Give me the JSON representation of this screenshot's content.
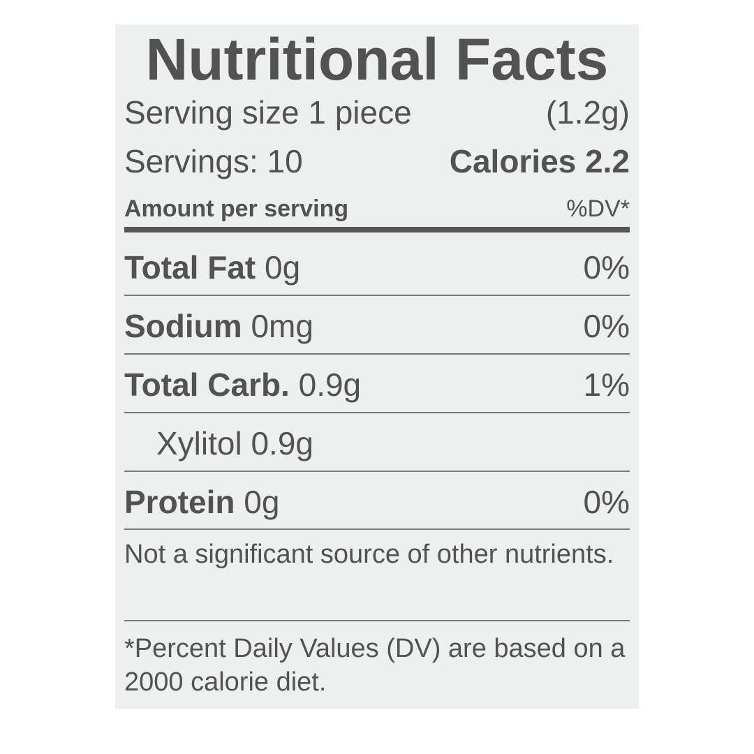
{
  "title": "Nutritional Facts",
  "serving_size_label": "Serving size 1 piece",
  "serving_size_weight": "(1.2g)",
  "servings": "Servings: 10",
  "calories": "Calories 2.2",
  "amount_header": "Amount per serving",
  "dv_header": "%DV*",
  "nutrients": [
    {
      "name": "Total Fat",
      "amount": "0g",
      "dv": "0%"
    },
    {
      "name": "Sodium",
      "amount": "0mg",
      "dv": "0%"
    },
    {
      "name": "Total Carb.",
      "amount": "0.9g",
      "dv": "1%"
    },
    {
      "name": "",
      "amount": "Xylitol 0.9g",
      "dv": ""
    },
    {
      "name": "Protein",
      "amount": "0g",
      "dv": "0%"
    }
  ],
  "note": "Not a significant source of other nutrients.",
  "footnote": "*Percent Daily Values (DV) are based on a 2000 calorie diet."
}
